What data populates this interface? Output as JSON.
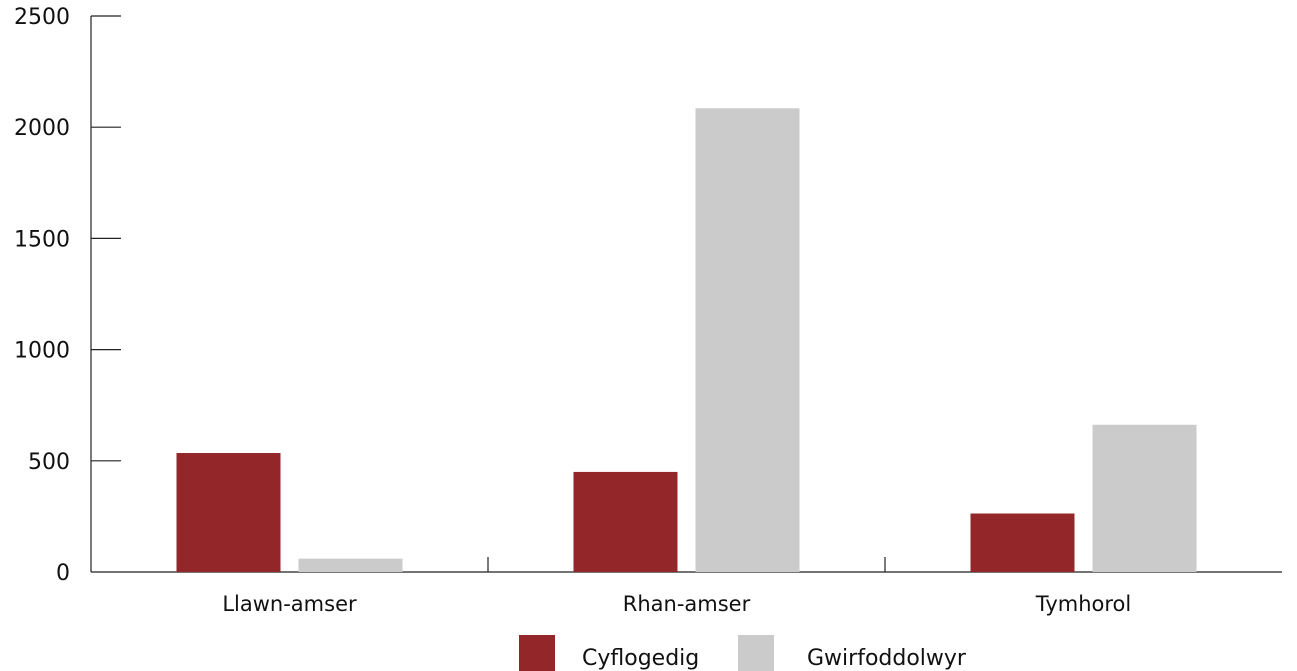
{
  "chart_data": {
    "type": "bar",
    "categories": [
      "Llawn-amser",
      "Rhan-amser",
      "Tymhorol"
    ],
    "series": [
      {
        "name": "Cyflogedig",
        "values": [
          535,
          450,
          263
        ],
        "color": "#932628"
      },
      {
        "name": "Gwirfoddolwyr",
        "values": [
          60,
          2085,
          662
        ],
        "color": "#cbcbcb"
      }
    ],
    "y_ticks": [
      "0",
      "500",
      "1000",
      "1500",
      "2000",
      "2500"
    ],
    "ylim": [
      0,
      2500
    ],
    "grid": false,
    "legend_position": "bottom-center"
  }
}
